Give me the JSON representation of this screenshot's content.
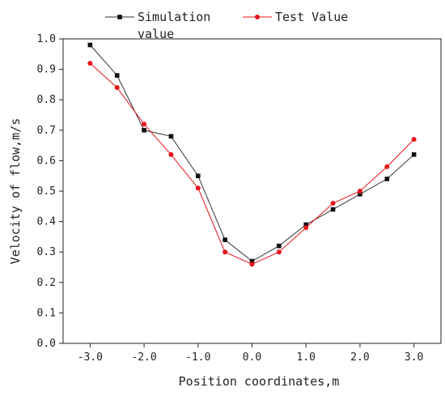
{
  "chart_data": {
    "type": "line",
    "xlabel": "Position coordinates,m",
    "ylabel": "Velocity of flow,m/s",
    "xlim": [
      -3.5,
      3.5
    ],
    "ylim": [
      0.0,
      1.0
    ],
    "x_ticks": [
      -3.0,
      -2.0,
      -1.0,
      0.0,
      1.0,
      2.0,
      3.0
    ],
    "x_tick_labels": [
      "-3.0",
      "-2.0",
      "-1.0",
      "0.0",
      "1.0",
      "2.0",
      "3.0"
    ],
    "y_ticks": [
      0.0,
      0.1,
      0.2,
      0.3,
      0.4,
      0.5,
      0.6,
      0.7,
      0.8,
      0.9,
      1.0
    ],
    "y_tick_labels": [
      "0.0",
      "0.1",
      "0.2",
      "0.3",
      "0.4",
      "0.5",
      "0.6",
      "0.7",
      "0.8",
      "0.9",
      "1.0"
    ],
    "grid": false,
    "legend_position": "top",
    "x": [
      -3.0,
      -2.5,
      -2.0,
      -1.5,
      -1.0,
      -0.5,
      0.0,
      0.5,
      1.0,
      1.5,
      2.0,
      2.5,
      3.0
    ],
    "series": [
      {
        "name": "Simulation value",
        "legend_lines": [
          "Simulation",
          "value"
        ],
        "color": "#333333",
        "marker": "square",
        "values": [
          0.98,
          0.88,
          0.7,
          0.68,
          0.55,
          0.34,
          0.27,
          0.32,
          0.39,
          0.44,
          0.49,
          0.54,
          0.62
        ]
      },
      {
        "name": "Test Value",
        "legend_lines": [
          "Test Value"
        ],
        "color": "#e8141b",
        "marker": "circle",
        "values": [
          0.92,
          0.84,
          0.72,
          0.62,
          0.51,
          0.3,
          0.26,
          0.3,
          0.38,
          0.46,
          0.5,
          0.58,
          0.67
        ]
      }
    ]
  }
}
